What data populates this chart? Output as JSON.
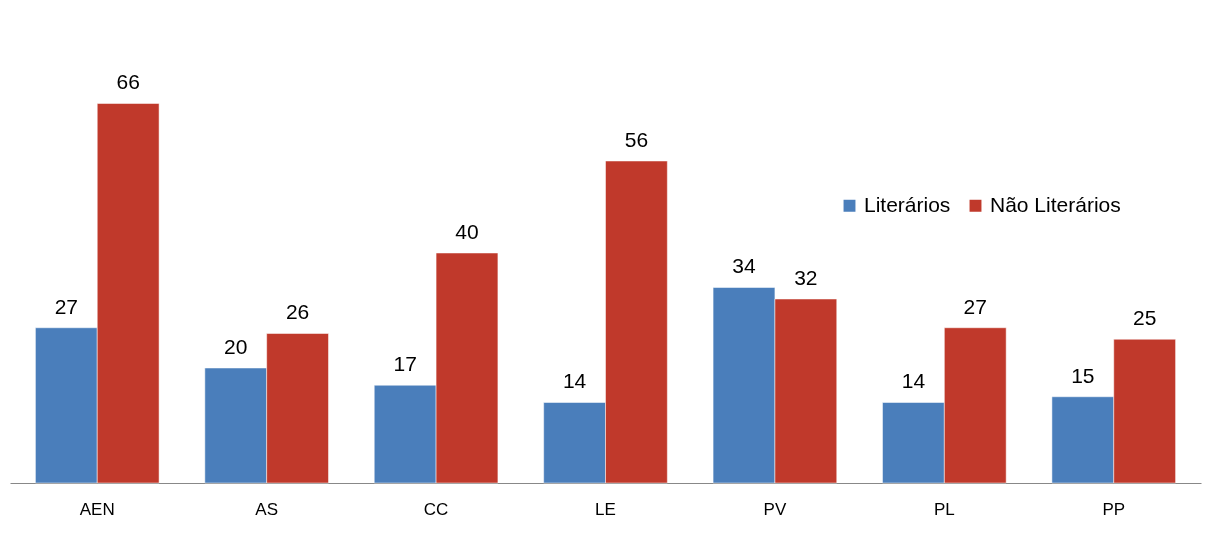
{
  "chart_data": {
    "type": "bar",
    "categories": [
      "AEN",
      "AS",
      "CC",
      "LE",
      "PV",
      "PL",
      "PP"
    ],
    "series": [
      {
        "name": "Literários",
        "color": "#4a7ebb",
        "values": [
          27,
          20,
          17,
          14,
          34,
          14,
          15
        ]
      },
      {
        "name": "Não Literários",
        "color": "#c0392b",
        "values": [
          66,
          26,
          40,
          56,
          32,
          27,
          25
        ]
      }
    ],
    "data_labels": true,
    "legend": "right",
    "grid": false
  }
}
